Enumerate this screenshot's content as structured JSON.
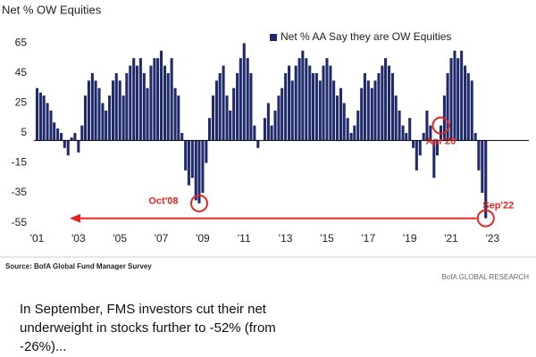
{
  "chart_data": {
    "type": "bar",
    "title": "Net % OW Equities",
    "source": "Source: BofA Global Fund Manager Survey",
    "credit": "BofA GLOBAL RESEARCH",
    "caption": "In September, FMS investors cut their net underweight in stocks further to -52% (from -26%)...",
    "annotations": [
      "Oct'08",
      "Apr'20",
      "Sep'22"
    ],
    "annotation_color": "#e3261f",
    "xlim": [
      2000.85,
      2023.5
    ],
    "xticks": [
      {
        "value": 2001,
        "label": "'01"
      },
      {
        "value": 2003,
        "label": "'03"
      },
      {
        "value": 2005,
        "label": "'05"
      },
      {
        "value": 2007,
        "label": "'07"
      },
      {
        "value": 2009,
        "label": "'09"
      },
      {
        "value": 2011,
        "label": "'11"
      },
      {
        "value": 2013,
        "label": "'13"
      },
      {
        "value": 2015,
        "label": "'15"
      },
      {
        "value": 2017,
        "label": "'17"
      },
      {
        "value": 2019,
        "label": "'19"
      },
      {
        "value": 2021,
        "label": "'21"
      },
      {
        "value": 2023,
        "label": "'23"
      }
    ],
    "ylim": [
      -60,
      70
    ],
    "yticks": [
      65,
      45,
      25,
      5,
      -15,
      -35,
      -55
    ],
    "x": [
      2001.0,
      2001.17,
      2001.33,
      2001.5,
      2001.67,
      2001.83,
      2002.0,
      2002.17,
      2002.33,
      2002.5,
      2002.67,
      2002.83,
      2003.0,
      2003.17,
      2003.33,
      2003.5,
      2003.67,
      2003.83,
      2004.0,
      2004.17,
      2004.33,
      2004.5,
      2004.67,
      2004.83,
      2005.0,
      2005.17,
      2005.33,
      2005.5,
      2005.67,
      2005.83,
      2006.0,
      2006.17,
      2006.33,
      2006.5,
      2006.67,
      2006.83,
      2007.0,
      2007.17,
      2007.33,
      2007.5,
      2007.67,
      2007.83,
      2008.0,
      2008.17,
      2008.33,
      2008.5,
      2008.67,
      2008.83,
      2009.0,
      2009.17,
      2009.33,
      2009.5,
      2009.67,
      2009.83,
      2010.0,
      2010.17,
      2010.33,
      2010.5,
      2010.67,
      2010.83,
      2011.0,
      2011.17,
      2011.33,
      2011.5,
      2011.67,
      2011.83,
      2012.0,
      2012.17,
      2012.33,
      2012.5,
      2012.67,
      2012.83,
      2013.0,
      2013.17,
      2013.33,
      2013.5,
      2013.67,
      2013.83,
      2014.0,
      2014.17,
      2014.33,
      2014.5,
      2014.67,
      2014.83,
      2015.0,
      2015.17,
      2015.33,
      2015.5,
      2015.67,
      2015.83,
      2016.0,
      2016.17,
      2016.33,
      2016.5,
      2016.67,
      2016.83,
      2017.0,
      2017.17,
      2017.33,
      2017.5,
      2017.67,
      2017.83,
      2018.0,
      2018.17,
      2018.33,
      2018.5,
      2018.67,
      2018.83,
      2019.0,
      2019.17,
      2019.33,
      2019.5,
      2019.67,
      2019.83,
      2020.0,
      2020.17,
      2020.33,
      2020.5,
      2020.67,
      2020.83,
      2021.0,
      2021.17,
      2021.33,
      2021.5,
      2021.67,
      2021.83,
      2022.0,
      2022.17,
      2022.33,
      2022.5,
      2022.67
    ],
    "series": [
      {
        "name": "Net % AA Say they are OW Equities",
        "color": "#1f2a6b",
        "values": [
          35,
          32,
          30,
          25,
          20,
          12,
          8,
          5,
          -5,
          -10,
          2,
          5,
          -8,
          10,
          30,
          40,
          45,
          40,
          35,
          25,
          20,
          30,
          40,
          45,
          40,
          30,
          45,
          50,
          55,
          50,
          55,
          45,
          35,
          50,
          55,
          55,
          60,
          50,
          45,
          55,
          35,
          30,
          5,
          -20,
          -30,
          -25,
          -40,
          -42,
          -35,
          -15,
          15,
          30,
          40,
          45,
          50,
          30,
          20,
          35,
          45,
          55,
          65,
          55,
          45,
          10,
          -5,
          0,
          15,
          25,
          10,
          20,
          30,
          35,
          45,
          50,
          40,
          50,
          55,
          60,
          55,
          50,
          45,
          45,
          40,
          50,
          55,
          50,
          40,
          30,
          35,
          25,
          15,
          5,
          10,
          20,
          35,
          45,
          40,
          35,
          40,
          45,
          50,
          55,
          50,
          45,
          30,
          20,
          10,
          5,
          15,
          -5,
          -20,
          -10,
          5,
          20,
          10,
          -25,
          -10,
          10,
          30,
          45,
          55,
          60,
          55,
          60,
          50,
          45,
          40,
          5,
          -20,
          -35,
          -52
        ]
      }
    ]
  }
}
